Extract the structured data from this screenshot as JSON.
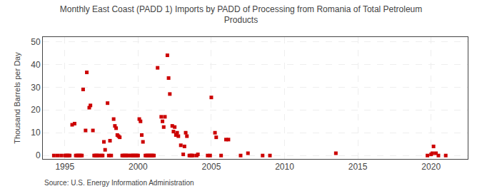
{
  "chart_data": {
    "type": "scatter",
    "title": "Monthly East Coast (PADD 1) Imports by PADD of Processing from Romania of Total Petroleum\nProducts",
    "ylabel": "Thousand Barrels per Day",
    "annotations": [
      "Source: U.S. Energy Information Administration"
    ],
    "color": "#cc0000",
    "marker": "square",
    "grid": true,
    "xlim": [
      1993.5,
      2022.5
    ],
    "ylim": [
      -1.5,
      52
    ],
    "xticks": [
      1995,
      2000,
      2005,
      2010,
      2015,
      2020
    ],
    "yticks": [
      0,
      10,
      20,
      30,
      40,
      50
    ],
    "x": [
      1994.25,
      1994.5,
      1994.75,
      1995.0,
      1995.083,
      1995.167,
      1995.25,
      1995.333,
      1995.5,
      1995.667,
      1995.75,
      1995.833,
      1995.917,
      1996.0,
      1996.083,
      1996.167,
      1996.25,
      1996.417,
      1996.5,
      1996.667,
      1996.75,
      1996.917,
      1997.0,
      1997.083,
      1997.167,
      1997.25,
      1997.333,
      1997.5,
      1997.583,
      1997.667,
      1997.75,
      1997.917,
      1998.0,
      1998.083,
      1998.167,
      1998.333,
      1998.417,
      1998.5,
      1998.583,
      1998.667,
      1998.75,
      1998.917,
      1999.0,
      1999.083,
      1999.167,
      1999.25,
      1999.333,
      1999.5,
      1999.583,
      1999.667,
      1999.75,
      1999.833,
      1999.917,
      2000.0,
      2000.083,
      2000.167,
      2000.25,
      2000.333,
      2000.5,
      2000.583,
      2000.667,
      2000.75,
      2000.833,
      2000.917,
      2001.0,
      2001.083,
      2001.333,
      2001.583,
      2001.667,
      2001.75,
      2001.833,
      2002.0,
      2002.083,
      2002.167,
      2002.333,
      2002.417,
      2002.5,
      2002.583,
      2002.667,
      2002.75,
      2002.917,
      2003.083,
      2003.167,
      2003.25,
      2003.333,
      2003.5,
      2003.583,
      2003.667,
      2003.75,
      2004.0,
      2004.083,
      2004.75,
      2004.917,
      2005.0,
      2005.25,
      2005.333,
      2005.667,
      2006.0,
      2006.167,
      2007.0,
      2007.5,
      2008.5,
      2009.0,
      2013.5,
      2019.75,
      2020.0,
      2020.083,
      2020.167,
      2020.333,
      2020.5,
      2021.0
    ],
    "values": [
      0,
      0,
      0,
      0,
      0,
      0,
      0,
      0,
      13.5,
      14.0,
      0,
      0,
      0,
      0,
      0,
      0,
      29.0,
      11.0,
      36.5,
      21.0,
      22.0,
      11.0,
      0,
      0,
      0,
      0,
      0,
      0,
      0,
      6.0,
      2.5,
      23.0,
      0,
      6.5,
      0,
      16.0,
      13.0,
      12.0,
      9.0,
      8.5,
      8.0,
      0,
      0,
      0,
      0,
      0,
      0,
      0,
      0,
      0,
      0,
      0,
      0,
      0,
      16.0,
      15.0,
      9.0,
      6.0,
      0,
      0,
      0,
      0,
      0,
      0,
      0,
      0,
      38.5,
      17.0,
      15.0,
      12.5,
      17.0,
      44.0,
      34.0,
      27.0,
      13.0,
      10.5,
      12.5,
      9.0,
      10.0,
      8.5,
      4.5,
      0.5,
      4.0,
      10.0,
      8.5,
      0,
      0,
      0,
      0,
      0,
      0.5,
      0,
      0,
      25.5,
      10.0,
      8.0,
      0,
      7.0,
      7.0,
      0,
      1.0,
      0,
      0,
      1.0,
      0,
      0.5,
      1.0,
      4.0,
      1.0,
      0,
      0
    ]
  }
}
